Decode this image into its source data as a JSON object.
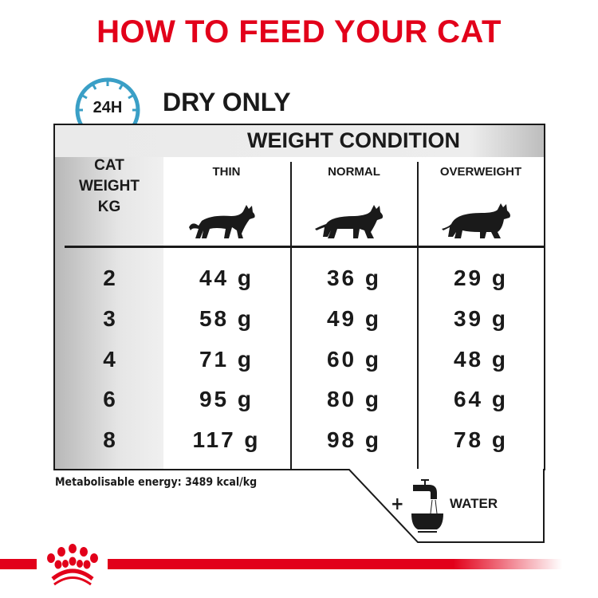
{
  "title": "HOW TO FEED YOUR CAT",
  "clock_label": "24H",
  "subtitle": "DRY ONLY",
  "table": {
    "group_header": "WEIGHT CONDITION",
    "row_header": [
      "CAT",
      "WEIGHT",
      "KG"
    ],
    "columns": [
      "THIN",
      "NORMAL",
      "OVERWEIGHT"
    ],
    "rows": [
      {
        "kg": "2",
        "values": [
          "44 g",
          "36 g",
          "29 g"
        ]
      },
      {
        "kg": "3",
        "values": [
          "58 g",
          "49 g",
          "39 g"
        ]
      },
      {
        "kg": "4",
        "values": [
          "71 g",
          "60 g",
          "48 g"
        ]
      },
      {
        "kg": "6",
        "values": [
          "95 g",
          "80 g",
          "64 g"
        ]
      },
      {
        "kg": "8",
        "values": [
          "117 g",
          "98 g",
          "78 g"
        ]
      }
    ]
  },
  "energy": "Metabolisable energy: 3489 kcal/kg",
  "water": {
    "plus": "+",
    "label": "WATER"
  },
  "colors": {
    "brand_red": "#e2001a",
    "clock_blue": "#3a9fc6"
  }
}
